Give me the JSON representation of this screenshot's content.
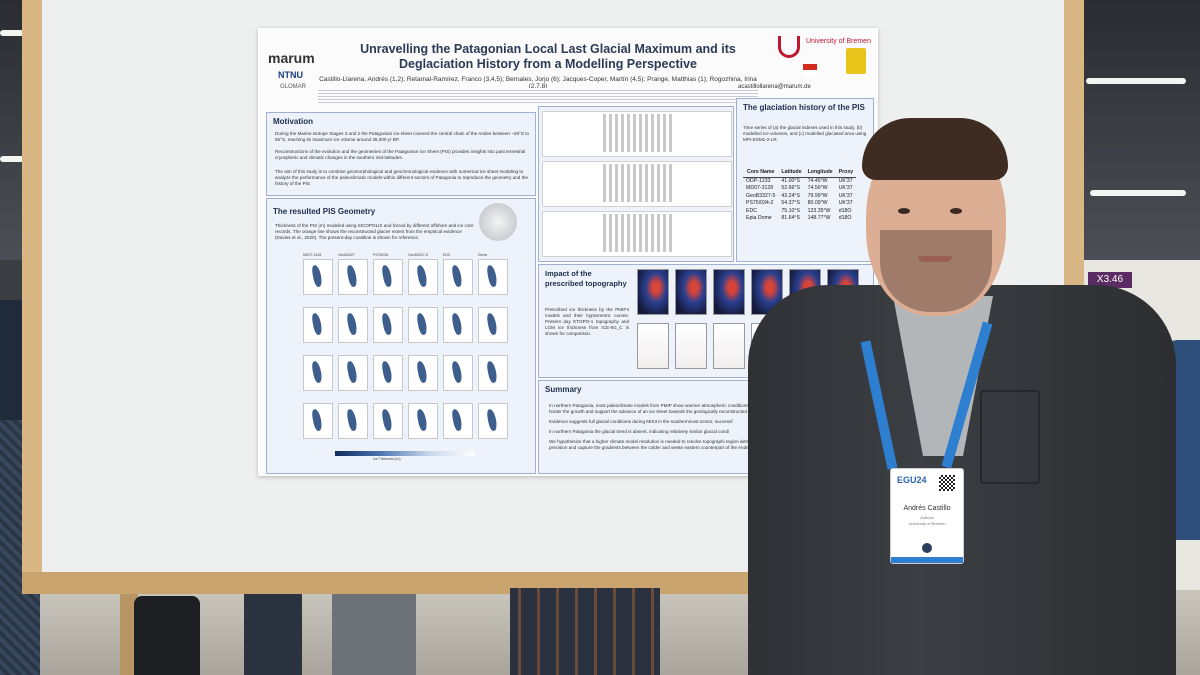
{
  "poster": {
    "title_line1": "Unravelling the Patagonian Local Last Glacial Maximum and its",
    "title_line2": "Deglaciation History from a Modelling Perspective",
    "logos": {
      "marum": "marum",
      "ntnu": "NTNU",
      "glomar": "GLOMAR",
      "university": "University of Bremen"
    },
    "authors": "Castillo-Llarena, Andrés (1,2); Retamal-Ramírez, Franco (3,4,5); Bernales, Jorjo (6); Jacques-Coper, Martín (4,5); Prange, Matthias (1); Rogozhina, Irina (2,7,8)",
    "email": "acastillollarena@marum.de",
    "motivation": {
      "title": "Motivation",
      "bullets": [
        "During the Marine Isotope Stages 3 and 2 the Patagonian ice sheet covered the central chain of the Andes between ~38°S to 55°S, reaching its maximum ice volume around 35,000 yr BP.",
        "Reconstructions of the evolution and the geometries of the Patagonian Ice Sheet (PIS) provides insights into past terrestrial cryospheric and climatic changes in the southern mid-latitudes.",
        "The aim of this study is to combine geomorphological and geochronological evidence with numerical ice sheet modeling to analyze the performance of the paleoclimatic models within different sectors of Patagonia to reproduce the geometry and the history of the PIS."
      ]
    },
    "geometry": {
      "title": "The resulted PIS Geometry",
      "text": "Thickness of the PIS (m) modeled using SICOPOLIS and forced by different offshore and ice core records. The orange line shows the reconstructed glacier extent from the empirical evidence (Davies et al., 2020). The present-day coastline is shown for reference.",
      "columns": [
        "MD07-3128",
        "GeoB3327",
        "PS75/034",
        "GeoB3327-5",
        "EDC",
        "Dome"
      ],
      "colorbar_label": "Ice Thickness (m)"
    },
    "glaciation": {
      "title": "The glaciation history of the PIS",
      "text": "Time series of (a) the glacial indexes used in this study, (b) modelled ice volumes, and (c) modelled glaciated area using MPI-ESM1-2-LR.",
      "table_header": [
        "Core Name",
        "Latitude",
        "Longitude",
        "Proxy"
      ],
      "table_rows": [
        [
          "ODP-1233",
          "41.00°S",
          "74.45°W",
          "UK'37"
        ],
        [
          "MD07-3128",
          "52.66°S",
          "74.56°W",
          "UK'37"
        ],
        [
          "GeoB3327-5",
          "43.24°S",
          "79.99°W",
          "UK'37"
        ],
        [
          "PS75/034-2",
          "54.37°S",
          "80.09°W",
          "UK'37"
        ],
        [
          "EDC",
          "75.10°S",
          "123.35°W",
          "d18O"
        ],
        [
          "Epia Dome",
          "81.64°S",
          "148.77°W",
          "d18O"
        ]
      ]
    },
    "topography": {
      "title_line1": "Impact of the",
      "title_line2": "prescribed topography",
      "text": "Prescribed ice thickness by the PMIP4 models and their hypsometric curves. Present day ETOPO-1 topography and LGM ice thickness from ICE-6G_C is shown for comparison."
    },
    "summary": {
      "title": "Summary",
      "bullets": [
        "In northern Patagonia, most paleoclimate models from PMIP show warmer atmospheric conditions that hinder the growth and support the advance of an ice sheet towards the geologically reconstructed",
        "Evidence suggests full glacial conditions during MIS3 in the southernmost sector, successf",
        "In northern Patagonia the glacial trend is absent, indicating relatively similar glacial condi",
        "We hypothesize that a higher climate model resolution is needed to resolve topographi region with enough precision and capture the gradients between the colder and weste eastern counterpart of the Andes."
      ]
    }
  },
  "badge": {
    "event": "EGU24",
    "name": "Andrés Castillo",
    "role": "Authors",
    "organization": "University of Bremen"
  },
  "sign": {
    "label": "X3.46"
  },
  "colors": {
    "poster_title": "#2c3a55",
    "panel_border": "#9fb0d0",
    "bremen_red": "#c01730",
    "lanyard_blue": "#2f7fd0",
    "board_frame": "#d8b784"
  }
}
